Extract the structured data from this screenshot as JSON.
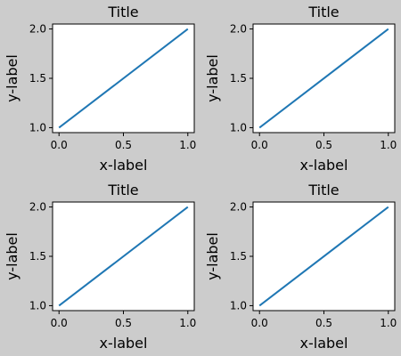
{
  "figure": {
    "background": "#cccccc",
    "axes_background": "#ffffff",
    "line_color": "#1f77b4"
  },
  "chart_data": [
    {
      "type": "line",
      "title": "Title",
      "xlabel": "x-label",
      "ylabel": "y-label",
      "xlim": [
        -0.05,
        1.05
      ],
      "ylim": [
        0.95,
        2.05
      ],
      "xticks": [
        "0.0",
        "0.5",
        "1.0"
      ],
      "xtick_values": [
        0,
        0.5,
        1
      ],
      "yticks": [
        "1.0",
        "1.5",
        "2.0"
      ],
      "ytick_values": [
        1,
        1.5,
        2
      ],
      "grid": false,
      "series": [
        {
          "x": [
            0,
            1
          ],
          "y": [
            1,
            2
          ]
        }
      ]
    },
    {
      "type": "line",
      "title": "Title",
      "xlabel": "x-label",
      "ylabel": "y-label",
      "xlim": [
        -0.05,
        1.05
      ],
      "ylim": [
        0.95,
        2.05
      ],
      "xticks": [
        "0.0",
        "0.5",
        "1.0"
      ],
      "xtick_values": [
        0,
        0.5,
        1
      ],
      "yticks": [
        "1.0",
        "1.5",
        "2.0"
      ],
      "ytick_values": [
        1,
        1.5,
        2
      ],
      "grid": false,
      "series": [
        {
          "x": [
            0,
            1
          ],
          "y": [
            1,
            2
          ]
        }
      ]
    },
    {
      "type": "line",
      "title": "Title",
      "xlabel": "x-label",
      "ylabel": "y-label",
      "xlim": [
        -0.05,
        1.05
      ],
      "ylim": [
        0.95,
        2.05
      ],
      "xticks": [
        "0.0",
        "0.5",
        "1.0"
      ],
      "xtick_values": [
        0,
        0.5,
        1
      ],
      "yticks": [
        "1.0",
        "1.5",
        "2.0"
      ],
      "ytick_values": [
        1,
        1.5,
        2
      ],
      "grid": false,
      "series": [
        {
          "x": [
            0,
            1
          ],
          "y": [
            1,
            2
          ]
        }
      ]
    },
    {
      "type": "line",
      "title": "Title",
      "xlabel": "x-label",
      "ylabel": "y-label",
      "xlim": [
        -0.05,
        1.05
      ],
      "ylim": [
        0.95,
        2.05
      ],
      "xticks": [
        "0.0",
        "0.5",
        "1.0"
      ],
      "xtick_values": [
        0,
        0.5,
        1
      ],
      "yticks": [
        "1.0",
        "1.5",
        "2.0"
      ],
      "ytick_values": [
        1,
        1.5,
        2
      ],
      "grid": false,
      "series": [
        {
          "x": [
            0,
            1
          ],
          "y": [
            1,
            2
          ]
        }
      ]
    }
  ]
}
